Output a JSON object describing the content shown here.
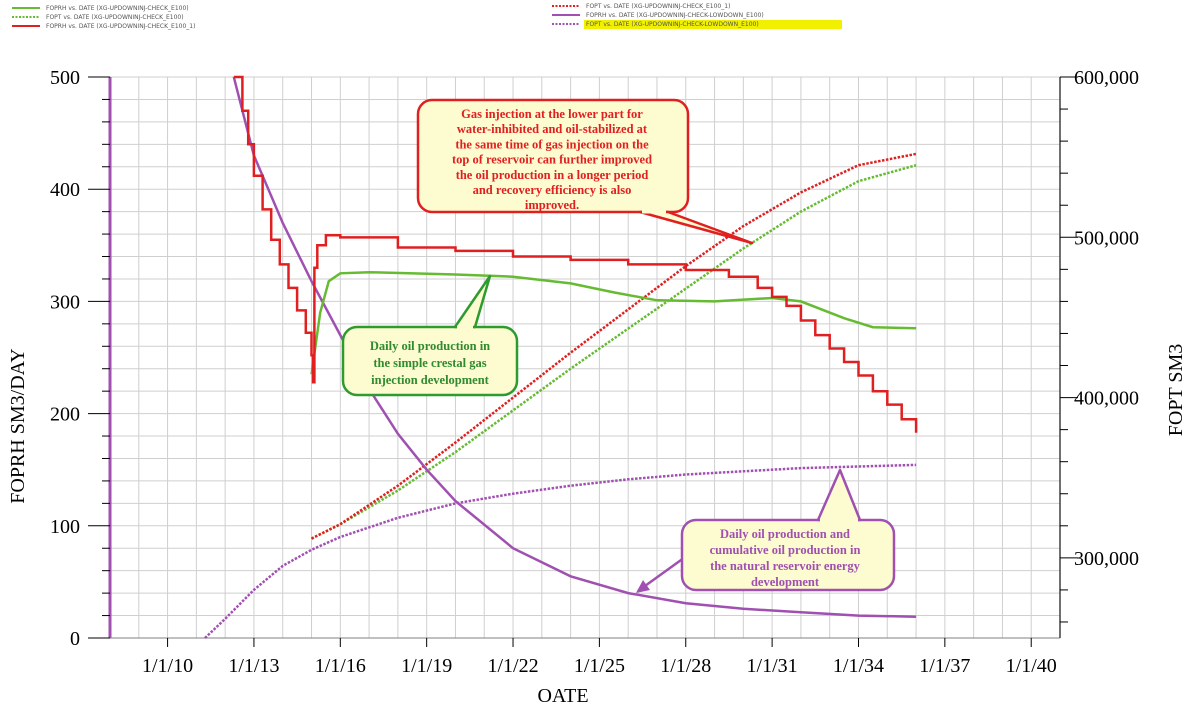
{
  "chart_data": {
    "type": "line",
    "xlabel": "OATE",
    "ylabel": "FOPRH SM3/DAY",
    "y2label": "FOPT SM3",
    "x_ticks": [
      "1/1/10",
      "1/1/13",
      "1/1/16",
      "1/1/19",
      "1/1/22",
      "1/1/25",
      "1/1/28",
      "1/1/31",
      "1/1/34",
      "1/1/37",
      "1/1/40"
    ],
    "xlim": [
      2008,
      2041
    ],
    "ylim": [
      0,
      500
    ],
    "y_ticks": [
      "0",
      "100",
      "200",
      "300",
      "400",
      "500"
    ],
    "y2lim": [
      250000,
      600000
    ],
    "y2_ticks": [
      "300,000",
      "400,000",
      "500,000",
      "600,000"
    ],
    "grid": true,
    "legend": [
      {
        "label": "FOPRH vs. DATE (XG-UPDOWNINJ-CHECK_E100)",
        "color": "#66BB33",
        "style": "solid",
        "highlight": false
      },
      {
        "label": "FOPT vs. DATE (XG-UPDOWNINJ-CHECK_E100)",
        "color": "#66BB33",
        "style": "dotted",
        "highlight": false
      },
      {
        "label": "FOPRH vs. DATE (XG-UPDOWNINJ-CHECK_E100_1)",
        "color": "#E02020",
        "style": "solid",
        "highlight": false
      },
      {
        "label": "FOPT vs. DATE (XG-UPDOWNINJ-CHECK_E100_1)",
        "color": "#E02020",
        "style": "dotted",
        "highlight": false
      },
      {
        "label": "FOPRH vs. DATE (XG-UPDOWNINJ-CHECK-LOWDOWN_E100)",
        "color": "#A050B0",
        "style": "solid",
        "highlight": false
      },
      {
        "label": "FOPT vs. DATE (XG-UPDOWNINJ-CHECK-LOWDOWN_E100)",
        "color": "#A050B0",
        "style": "dotted",
        "highlight": true
      }
    ],
    "series": [
      {
        "axis": "y2",
        "style": "dotted",
        "color": "#66BB33",
        "points": [
          [
            2015,
            312000
          ],
          [
            2016,
            321000
          ],
          [
            2018,
            342000
          ],
          [
            2020,
            366000
          ],
          [
            2022,
            392000
          ],
          [
            2024,
            418000
          ],
          [
            2026,
            443000
          ],
          [
            2028,
            468000
          ],
          [
            2030,
            493000
          ],
          [
            2032,
            516000
          ],
          [
            2034,
            535000
          ],
          [
            2036,
            545000
          ]
        ]
      },
      {
        "axis": "y2",
        "style": "dotted",
        "color": "#E02020",
        "points": [
          [
            2015,
            312000
          ],
          [
            2016,
            321000
          ],
          [
            2018,
            345000
          ],
          [
            2020,
            372000
          ],
          [
            2022,
            400000
          ],
          [
            2024,
            428000
          ],
          [
            2026,
            455000
          ],
          [
            2028,
            482000
          ],
          [
            2030,
            507000
          ],
          [
            2032,
            528000
          ],
          [
            2034,
            545000
          ],
          [
            2036,
            552000
          ]
        ]
      },
      {
        "axis": "y2",
        "style": "dotted",
        "color": "#A050B0",
        "points": [
          [
            2011.3,
            250000
          ],
          [
            2012,
            262000
          ],
          [
            2013,
            280000
          ],
          [
            2014,
            295000
          ],
          [
            2015,
            305000
          ],
          [
            2016,
            313000
          ],
          [
            2018,
            325000
          ],
          [
            2020,
            334000
          ],
          [
            2022,
            340000
          ],
          [
            2024,
            345000
          ],
          [
            2026,
            349000
          ],
          [
            2028,
            352000
          ],
          [
            2030,
            354000
          ],
          [
            2032,
            356000
          ],
          [
            2034,
            357000
          ],
          [
            2036,
            358000
          ]
        ]
      },
      {
        "axis": "y",
        "style": "solid",
        "color": "#A050B0",
        "points": [
          [
            2012.3,
            500
          ],
          [
            2013,
            430
          ],
          [
            2014,
            370
          ],
          [
            2015,
            318
          ],
          [
            2016,
            270
          ],
          [
            2017,
            222
          ],
          [
            2018,
            182
          ],
          [
            2019,
            150
          ],
          [
            2020,
            122
          ],
          [
            2022,
            80
          ],
          [
            2024,
            55
          ],
          [
            2026,
            40
          ],
          [
            2028,
            31
          ],
          [
            2030,
            26
          ],
          [
            2032,
            23
          ],
          [
            2034,
            20
          ],
          [
            2036,
            19
          ]
        ]
      },
      {
        "axis": "y",
        "style": "solid",
        "color": "#66BB33",
        "points": [
          [
            2015,
            235
          ],
          [
            2015.3,
            290
          ],
          [
            2015.6,
            318
          ],
          [
            2016,
            325
          ],
          [
            2017,
            326
          ],
          [
            2020,
            324
          ],
          [
            2022,
            322
          ],
          [
            2024,
            316
          ],
          [
            2025.5,
            308
          ],
          [
            2027,
            301
          ],
          [
            2029,
            300
          ],
          [
            2031,
            303
          ],
          [
            2032,
            300
          ],
          [
            2033.5,
            285
          ],
          [
            2034.5,
            277
          ],
          [
            2036,
            276
          ]
        ]
      },
      {
        "axis": "y",
        "style": "step",
        "color": "#E02020",
        "points": [
          [
            2012.3,
            500
          ],
          [
            2012.6,
            470
          ],
          [
            2012.8,
            440
          ],
          [
            2013,
            412
          ],
          [
            2013.3,
            382
          ],
          [
            2013.6,
            355
          ],
          [
            2013.9,
            333
          ],
          [
            2014.2,
            312
          ],
          [
            2014.5,
            292
          ],
          [
            2014.8,
            272
          ],
          [
            2015,
            252
          ],
          [
            2015.05,
            228
          ],
          [
            2015.1,
            330
          ],
          [
            2015.2,
            350
          ],
          [
            2015.5,
            359
          ],
          [
            2016,
            357
          ],
          [
            2018,
            348
          ],
          [
            2020,
            345
          ],
          [
            2022,
            340
          ],
          [
            2024,
            337
          ],
          [
            2026,
            333
          ],
          [
            2028,
            328
          ],
          [
            2029.5,
            322
          ],
          [
            2030.5,
            312
          ],
          [
            2031,
            304
          ],
          [
            2031.5,
            296
          ],
          [
            2032,
            283
          ],
          [
            2032.5,
            270
          ],
          [
            2033,
            258
          ],
          [
            2033.5,
            246
          ],
          [
            2034,
            234
          ],
          [
            2034.5,
            220
          ],
          [
            2035,
            208
          ],
          [
            2035.5,
            195
          ],
          [
            2036,
            183
          ]
        ]
      }
    ],
    "annotations": [
      {
        "color": "#E02020",
        "lines": [
          "Gas injection at the lower part for",
          "water-inhibited  and oil-stabilized at",
          "the same time of gas injection on the",
          "top of reservoir can further improved",
          "the oil production  in  a longer period",
          "and  recovery efficiency is also",
          "improved."
        ]
      },
      {
        "color": "#2E8B2E",
        "lines": [
          "Daily oil production in",
          "the simple crestal gas",
          "injection development"
        ]
      },
      {
        "color": "#A050B0",
        "lines": [
          "Daily oil production and",
          "cumulative oil production in",
          "the natural reservoir energy",
          "development"
        ]
      }
    ]
  }
}
